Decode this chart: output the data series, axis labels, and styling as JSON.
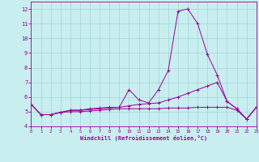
{
  "xlabel": "Windchill (Refroidissement éolien,°C)",
  "background_color": "#c8eef0",
  "line_color": "#990099",
  "grid_color": "#99cccc",
  "x": [
    0,
    1,
    2,
    3,
    4,
    5,
    6,
    7,
    8,
    9,
    10,
    11,
    12,
    13,
    14,
    15,
    16,
    17,
    18,
    19,
    20,
    21,
    22,
    23
  ],
  "series1": [
    5.5,
    4.8,
    4.8,
    4.95,
    5.1,
    5.1,
    5.2,
    5.25,
    5.3,
    5.3,
    6.5,
    5.8,
    5.6,
    6.5,
    7.8,
    11.85,
    12.0,
    11.0,
    8.9,
    7.5,
    5.7,
    5.2,
    4.5,
    5.3
  ],
  "series2": [
    5.5,
    4.8,
    4.8,
    4.95,
    5.1,
    5.1,
    5.15,
    5.2,
    5.25,
    5.3,
    5.4,
    5.5,
    5.55,
    5.6,
    5.8,
    6.0,
    6.25,
    6.5,
    6.75,
    7.0,
    5.7,
    5.2,
    4.5,
    5.3
  ],
  "series3": [
    5.5,
    4.8,
    4.8,
    4.95,
    5.0,
    5.0,
    5.05,
    5.1,
    5.15,
    5.2,
    5.2,
    5.2,
    5.2,
    5.2,
    5.25,
    5.25,
    5.25,
    5.3,
    5.3,
    5.3,
    5.3,
    5.1,
    4.5,
    5.3
  ],
  "xlim": [
    0,
    23
  ],
  "ylim": [
    4.0,
    12.5
  ],
  "yticks": [
    4,
    5,
    6,
    7,
    8,
    9,
    10,
    11,
    12
  ],
  "xticks": [
    0,
    1,
    2,
    3,
    4,
    5,
    6,
    7,
    8,
    9,
    10,
    11,
    12,
    13,
    14,
    15,
    16,
    17,
    18,
    19,
    20,
    21,
    22,
    23
  ]
}
